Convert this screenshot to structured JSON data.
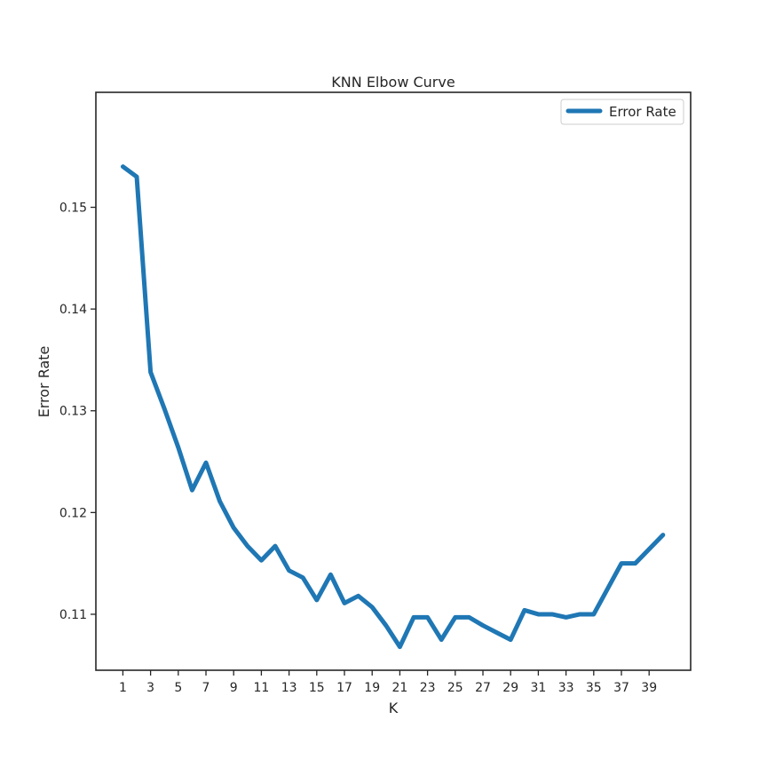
{
  "chart_data": {
    "type": "line",
    "title": "KNN Elbow Curve",
    "xlabel": "K",
    "ylabel": "Error Rate",
    "xlim": [
      -0.95,
      42.0
    ],
    "ylim": [
      0.1045,
      0.1613
    ],
    "xticks": [
      1,
      3,
      5,
      7,
      9,
      11,
      13,
      15,
      17,
      19,
      21,
      23,
      25,
      27,
      29,
      31,
      33,
      35,
      37,
      39
    ],
    "yticks": [
      0.11,
      0.12,
      0.13,
      0.14,
      0.15
    ],
    "ytick_labels": [
      "0.11",
      "0.12",
      "0.13",
      "0.14",
      "0.15"
    ],
    "legend_position": "top-right",
    "grid": false,
    "series": [
      {
        "name": "Error Rate",
        "color": "#1f77b4",
        "x": [
          1,
          2,
          3,
          4,
          5,
          6,
          7,
          8,
          9,
          10,
          11,
          12,
          13,
          14,
          15,
          16,
          17,
          18,
          19,
          20,
          21,
          22,
          23,
          24,
          25,
          26,
          27,
          28,
          29,
          30,
          31,
          32,
          33,
          34,
          35,
          36,
          37,
          38,
          39,
          40
        ],
        "values": [
          0.154,
          0.153,
          0.1338,
          0.1302,
          0.1264,
          0.1222,
          0.1249,
          0.1211,
          0.1185,
          0.1167,
          0.1153,
          0.1167,
          0.1143,
          0.1136,
          0.1114,
          0.1139,
          0.1111,
          0.1118,
          0.1107,
          0.1089,
          0.1068,
          0.1097,
          0.1097,
          0.1075,
          0.1097,
          0.1097,
          0.1089,
          0.1082,
          0.1075,
          0.1104,
          0.11,
          0.11,
          0.1097,
          0.11,
          0.11,
          0.1125,
          0.115,
          0.115,
          0.1164,
          0.1178
        ]
      }
    ]
  }
}
